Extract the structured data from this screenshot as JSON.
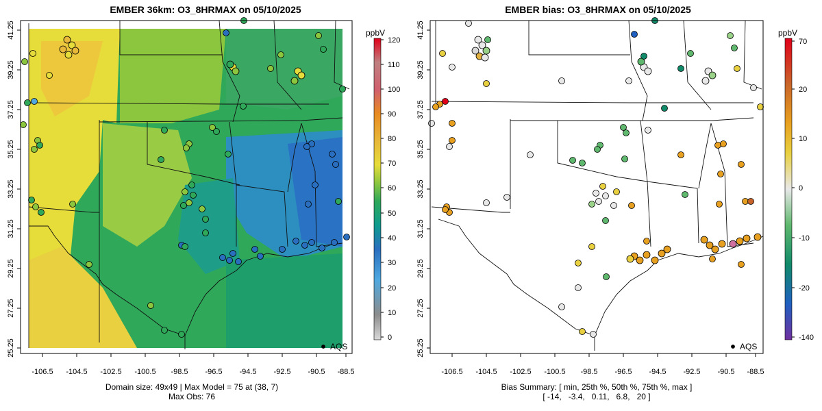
{
  "left_panel": {
    "title": "EMBER 36km: O3_8HRMAX on 05/10/2025",
    "colorbar": {
      "unit": "ppbV",
      "ticks": [
        "0",
        "10",
        "20",
        "30",
        "40",
        "50",
        "60",
        "70",
        "80",
        "90",
        "100",
        "110",
        "120"
      ],
      "stops": [
        "#d9d9d9",
        "#8c8c8c",
        "#4fa9e0",
        "#2a6fbf",
        "#0f9b8e",
        "#2fa85a",
        "#8cc63f",
        "#e6dc3a",
        "#e8b83a",
        "#e88a20",
        "#d0606e",
        "#c08080",
        "#e0001a"
      ]
    },
    "legend_label": "AQS",
    "caption_line1": "Domain size: 49x49 | Max Model = 75 at (38, 7)",
    "caption_line2": "Max Obs: 76"
  },
  "right_panel": {
    "title": "EMBER bias: O3_8HRMAX on 05/10/2025",
    "colorbar": {
      "unit": "ppbV",
      "ticks": [
        "70",
        "20",
        "10",
        "0",
        "-10",
        "-20",
        "-140"
      ],
      "stops": [
        "#e0001a",
        "#c8642a",
        "#e8a020",
        "#e8d040",
        "#e8e8e8",
        "#5fb86e",
        "#118a6a",
        "#2060c0",
        "#7030a0"
      ]
    },
    "legend_label": "AQS",
    "caption_line1": "Bias Summary: [ min, 25th %, 50th %, 75th %, max ]",
    "caption_line2": "[ -14,   -3.4,   0.11,   6.8,   20 ]"
  },
  "axes": {
    "x_ticks": [
      "-106.5",
      "-104.5",
      "-102.5",
      "-100.5",
      "-98.5",
      "-96.5",
      "-94.5",
      "-92.5",
      "-90.5",
      "-88.5"
    ],
    "y_ticks": [
      "41.25",
      "39.25",
      "37.25",
      "35.25",
      "33.25",
      "31.25",
      "29.25",
      "27.25",
      "25.25"
    ]
  }
}
